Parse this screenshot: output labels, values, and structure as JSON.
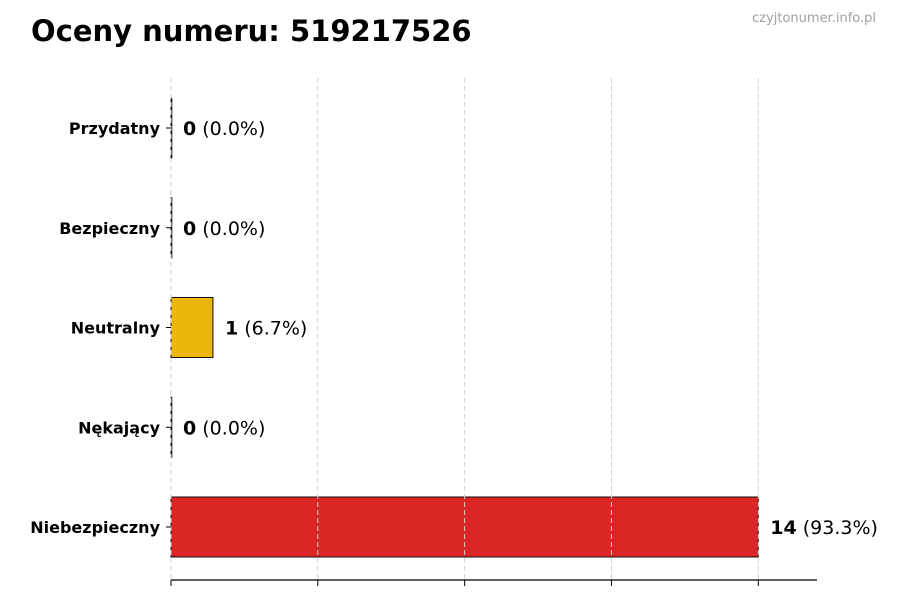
{
  "watermark": "czyjtonumer.info.pl",
  "chart_data": {
    "type": "bar",
    "orientation": "horizontal",
    "title": "Oceny numeru: 519217526",
    "xlabel": "",
    "ylabel": "",
    "categories": [
      "Przydatny",
      "Bezpieczny",
      "Neutralny",
      "Nękający",
      "Niebezpieczny"
    ],
    "values": [
      0,
      0,
      1,
      0,
      14
    ],
    "percent_labels": [
      "(0.0%)",
      "(0.0%)",
      "(6.7%)",
      "(0.0%)",
      "(93.3%)"
    ],
    "colors": [
      "#2e9e44",
      "#3b82f6",
      "#ebb50a",
      "#f97316",
      "#dc2626"
    ],
    "xlim": [
      0,
      15.4
    ],
    "xticks": [
      0,
      3.5,
      7,
      10.5,
      14
    ],
    "xtick_labels_shown": false,
    "grid": "x, dashed",
    "legend": "none"
  }
}
